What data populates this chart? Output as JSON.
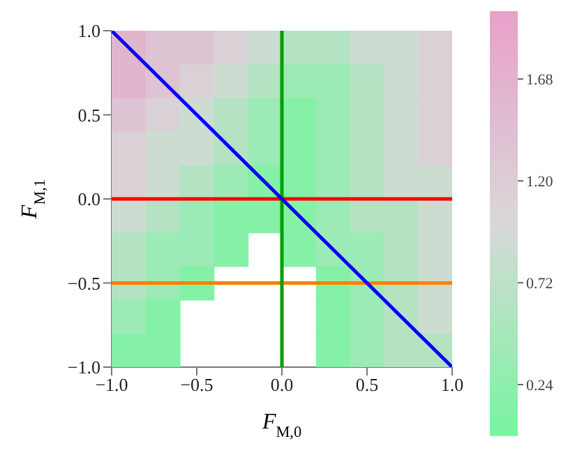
{
  "chart_data": {
    "type": "heatmap",
    "xlabel": "F$_{M,0}$",
    "ylabel": "F$_{M,1}$",
    "x": [
      -0.9,
      -0.7,
      -0.5,
      -0.3,
      -0.1,
      0.1,
      0.3,
      0.5,
      0.7,
      0.9
    ],
    "cells": [
      [
        1.625,
        1.375,
        1.375,
        1.125,
        0.875,
        0.625,
        0.625,
        0.875,
        0.875,
        1.125
      ],
      [
        1.625,
        1.375,
        1.125,
        0.875,
        0.625,
        0.375,
        0.375,
        0.625,
        0.875,
        1.125
      ],
      [
        1.375,
        1.125,
        0.875,
        0.625,
        0.375,
        0.125,
        0.375,
        0.625,
        0.875,
        1.125
      ],
      [
        1.125,
        0.875,
        0.875,
        0.625,
        0.375,
        0.125,
        0.375,
        0.625,
        0.875,
        1.125
      ],
      [
        1.125,
        0.875,
        0.625,
        0.375,
        0.125,
        0.125,
        0.375,
        0.625,
        0.875,
        0.875
      ],
      [
        0.875,
        0.625,
        0.375,
        0.125,
        0.125,
        0.125,
        0.375,
        0.625,
        0.625,
        0.875
      ],
      [
        0.625,
        0.375,
        0.375,
        0.125,
        null,
        0.125,
        0.375,
        0.375,
        0.625,
        0.875
      ],
      [
        0.625,
        0.375,
        0.125,
        null,
        null,
        null,
        0.125,
        0.375,
        0.625,
        0.875
      ],
      [
        0.375,
        0.125,
        null,
        null,
        null,
        null,
        0.125,
        0.375,
        0.625,
        0.875
      ],
      [
        0.125,
        0.125,
        null,
        null,
        null,
        null,
        0.125,
        0.375,
        0.625,
        0.625
      ]
    ],
    "clim": [
      0,
      2
    ],
    "cticks": [
      0.24,
      0.72,
      {
        "value": 1.2,
        "label": "1.20"
      },
      1.68
    ],
    "xlim": [
      -1,
      1
    ],
    "ylim": [
      -1,
      1
    ],
    "xticks": [
      {
        "value": -1,
        "label": "−1.0"
      },
      {
        "value": -0.5,
        "label": "−0.5"
      },
      {
        "value": 0,
        "label": "0.0"
      },
      {
        "value": 0.5,
        "label": "0.5"
      },
      {
        "value": 1,
        "label": "1.0"
      }
    ],
    "yticks": [
      {
        "value": -1,
        "label": "−1.0"
      },
      {
        "value": -0.5,
        "label": "−0.5"
      },
      {
        "value": 0,
        "label": "0.0"
      },
      {
        "value": 0.5,
        "label": "0.5"
      },
      {
        "value": 1,
        "label": "1.0"
      }
    ],
    "series": [
      {
        "type": "line",
        "color": "#ff0000",
        "x": [
          -1,
          1
        ],
        "values": [
          0,
          0
        ]
      },
      {
        "type": "line",
        "color": "#ff8000",
        "x": [
          -1,
          1
        ],
        "values": [
          -0.5,
          -0.5
        ]
      },
      {
        "type": "line",
        "color": "#00a000",
        "x": [
          0,
          0
        ],
        "values": [
          -1,
          1
        ]
      },
      {
        "type": "line",
        "color": "#0000ff",
        "x": [
          -1,
          1
        ],
        "values": [
          1,
          -1
        ]
      }
    ]
  }
}
